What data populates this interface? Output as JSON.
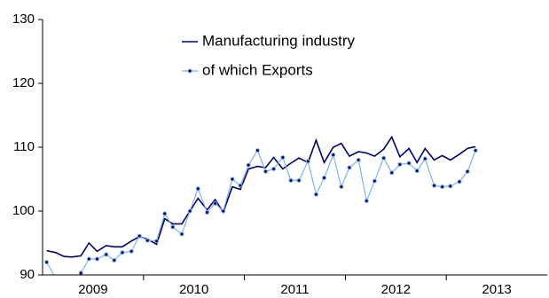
{
  "chart_data": {
    "type": "line",
    "x": [
      2009.04,
      2009.13,
      2009.21,
      2009.29,
      2009.38,
      2009.46,
      2009.54,
      2009.63,
      2009.71,
      2009.79,
      2009.88,
      2009.96,
      2010.04,
      2010.13,
      2010.21,
      2010.29,
      2010.38,
      2010.46,
      2010.54,
      2010.63,
      2010.71,
      2010.79,
      2010.88,
      2010.96,
      2011.04,
      2011.13,
      2011.21,
      2011.29,
      2011.38,
      2011.46,
      2011.54,
      2011.63,
      2011.71,
      2011.79,
      2011.88,
      2011.96,
      2012.04,
      2012.13,
      2012.21,
      2012.29,
      2012.38,
      2012.46,
      2012.54,
      2012.63,
      2012.71,
      2012.79,
      2012.88,
      2012.96,
      2013.04,
      2013.13,
      2013.21,
      2013.29
    ],
    "series": [
      {
        "name": "Manufacturing industry",
        "color": "#000066",
        "markers": false,
        "values": [
          93.8,
          93.5,
          92.9,
          92.8,
          93.0,
          95.0,
          93.7,
          94.6,
          94.4,
          94.4,
          95.3,
          96.0,
          95.6,
          94.8,
          98.8,
          98.0,
          98.0,
          100.0,
          102.0,
          100.2,
          101.8,
          99.8,
          103.8,
          103.4,
          106.6,
          107.0,
          106.8,
          108.4,
          106.6,
          107.5,
          108.3,
          107.6,
          111.1,
          107.6,
          110.0,
          110.6,
          108.6,
          109.3,
          109.1,
          108.6,
          109.7,
          111.6,
          108.5,
          109.8,
          107.6,
          109.8,
          108.0,
          108.7,
          108.0,
          108.9,
          109.8,
          110.1
        ]
      },
      {
        "name": "of which Exports",
        "color": "#7fb2e5",
        "markers": true,
        "values": [
          92.0,
          89.5,
          88.0,
          88.0,
          90.3,
          92.5,
          92.5,
          93.2,
          92.3,
          93.5,
          93.7,
          96.1,
          95.4,
          95.3,
          99.6,
          97.5,
          96.4,
          100.0,
          103.5,
          99.8,
          101.2,
          100.0,
          105.0,
          104.0,
          107.2,
          109.5,
          106.2,
          106.6,
          108.4,
          104.8,
          104.8,
          107.8,
          102.6,
          105.2,
          108.8,
          103.8,
          106.8,
          108.0,
          101.6,
          104.7,
          108.3,
          106.0,
          107.3,
          107.5,
          106.3,
          108.2,
          104.0,
          103.8,
          103.9,
          104.6,
          106.2,
          109.5
        ]
      }
    ],
    "xlim": [
      2009,
      2014
    ],
    "xticks": [
      {
        "value": 2009.5,
        "label": "2009"
      },
      {
        "value": 2010.5,
        "label": "2010"
      },
      {
        "value": 2011.5,
        "label": "2011"
      },
      {
        "value": 2012.5,
        "label": "2012"
      },
      {
        "value": 2013.5,
        "label": "2013"
      }
    ],
    "ylim": [
      90,
      130
    ],
    "yticks": [
      90,
      100,
      110,
      120,
      130
    ],
    "grid": false
  }
}
